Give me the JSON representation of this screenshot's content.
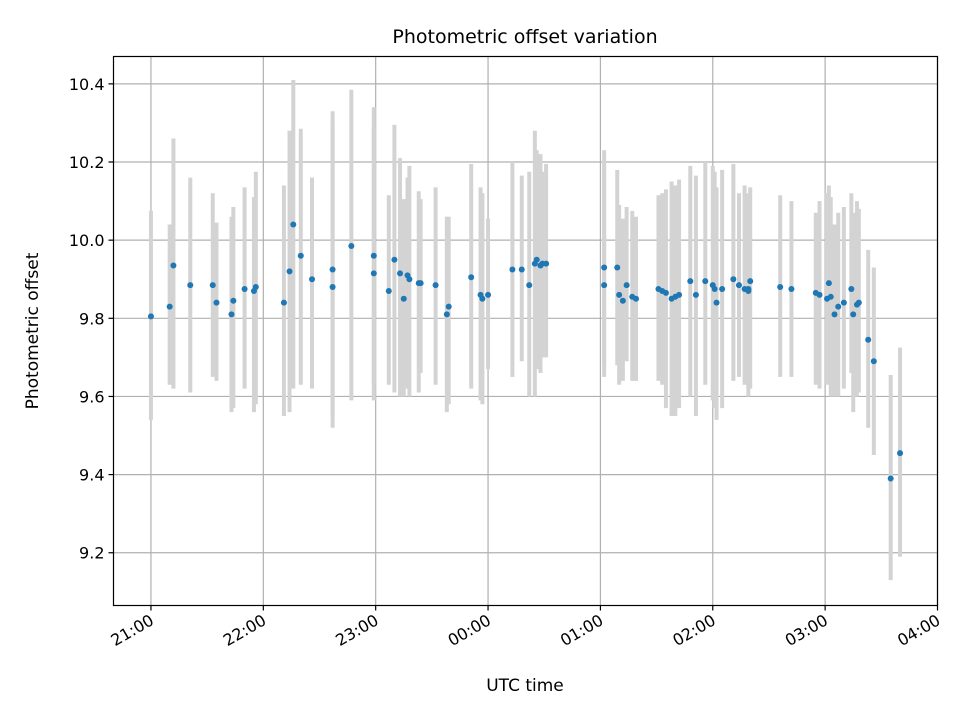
{
  "chart_data": {
    "type": "scatter",
    "title": "Photometric offset variation",
    "xlabel": "UTC time",
    "ylabel": "Photometric offset",
    "x_ticks": [
      "21:00",
      "22:00",
      "23:00",
      "00:00",
      "01:00",
      "02:00",
      "03:00",
      "04:00"
    ],
    "y_ticks": [
      "9.2",
      "9.4",
      "9.6",
      "9.8",
      "10.0",
      "10.2",
      "10.4"
    ],
    "xlim": [
      "20:40",
      "04:00"
    ],
    "ylim": [
      9.065,
      10.47
    ],
    "grid": true,
    "colors": {
      "point": "#1f77b4",
      "errorbar": "#d3d3d3",
      "grid": "#b0b0b0"
    },
    "series": [
      {
        "x": [
          "21:00",
          "21:10",
          "21:12",
          "21:21",
          "21:33",
          "21:35",
          "21:43",
          "21:44",
          "21:50",
          "21:55",
          "21:56",
          "22:11",
          "22:14",
          "22:16",
          "22:20",
          "22:26",
          "22:37",
          "22:37",
          "22:47",
          "22:59",
          "22:59",
          "23:07",
          "23:10",
          "23:13",
          "23:15",
          "23:17",
          "23:18",
          "23:23",
          "23:24",
          "23:32",
          "23:38",
          "23:39",
          "23:51",
          "23:56",
          "23:57",
          "24:00",
          "24:13",
          "24:18",
          "24:22",
          "24:25",
          "24:26",
          "24:28",
          "24:29",
          "24:31",
          "25:02",
          "25:02",
          "25:09",
          "25:10",
          "25:12",
          "25:14",
          "25:17",
          "25:19",
          "25:31",
          "25:33",
          "25:35",
          "25:38",
          "25:40",
          "25:42",
          "25:48",
          "25:51",
          "25:56",
          "26:00",
          "26:01",
          "26:02",
          "26:05",
          "26:11",
          "26:14",
          "26:17",
          "26:19",
          "26:19",
          "26:20",
          "26:36",
          "26:42",
          "26:55",
          "26:57",
          "27:01",
          "27:02",
          "27:03",
          "27:05",
          "27:07",
          "27:10",
          "27:14",
          "27:15",
          "27:17",
          "27:18",
          "27:23",
          "27:26",
          "27:35",
          "27:40"
        ],
        "y": [
          9.805,
          9.83,
          9.935,
          9.885,
          9.885,
          9.84,
          9.81,
          9.845,
          9.875,
          9.87,
          9.88,
          9.84,
          9.92,
          10.04,
          9.96,
          9.9,
          9.88,
          9.925,
          9.985,
          9.915,
          9.96,
          9.87,
          9.95,
          9.915,
          9.85,
          9.91,
          9.9,
          9.89,
          9.89,
          9.885,
          9.81,
          9.83,
          9.905,
          9.86,
          9.85,
          9.86,
          9.925,
          9.925,
          9.885,
          9.94,
          9.95,
          9.935,
          9.94,
          9.94,
          9.885,
          9.93,
          9.93,
          9.86,
          9.845,
          9.885,
          9.855,
          9.85,
          9.875,
          9.87,
          9.865,
          9.85,
          9.855,
          9.86,
          9.895,
          9.86,
          9.895,
          9.885,
          9.875,
          9.84,
          9.875,
          9.9,
          9.885,
          9.875,
          9.87,
          9.875,
          9.895,
          9.88,
          9.875,
          9.865,
          9.86,
          9.85,
          9.89,
          9.855,
          9.81,
          9.83,
          9.84,
          9.875,
          9.81,
          9.835,
          9.84,
          9.745,
          9.69,
          9.39,
          9.455
        ],
        "err_low": [
          9.54,
          9.63,
          9.62,
          9.61,
          9.65,
          9.64,
          9.56,
          9.57,
          9.62,
          9.56,
          9.58,
          9.55,
          9.56,
          9.62,
          9.63,
          9.62,
          9.52,
          9.55,
          9.59,
          9.59,
          9.63,
          9.63,
          9.61,
          9.6,
          9.6,
          9.62,
          9.6,
          9.61,
          9.66,
          9.63,
          9.56,
          9.58,
          9.62,
          9.59,
          9.58,
          9.67,
          9.65,
          9.69,
          9.6,
          9.6,
          9.67,
          9.66,
          9.7,
          9.7,
          9.65,
          9.69,
          9.68,
          9.63,
          9.64,
          9.69,
          9.64,
          9.64,
          9.64,
          9.63,
          9.57,
          9.55,
          9.55,
          9.57,
          9.6,
          9.55,
          9.63,
          9.59,
          9.57,
          9.54,
          9.57,
          9.64,
          9.65,
          9.63,
          9.62,
          9.6,
          9.62,
          9.65,
          9.65,
          9.63,
          9.62,
          9.63,
          9.65,
          9.6,
          9.6,
          9.6,
          9.62,
          9.66,
          9.56,
          9.6,
          9.61,
          9.52,
          9.45,
          9.13,
          9.19
        ],
        "err_high": [
          10.075,
          10.04,
          10.26,
          10.16,
          10.12,
          10.045,
          10.06,
          10.085,
          10.135,
          10.11,
          10.175,
          10.14,
          10.28,
          10.41,
          10.285,
          10.16,
          10.33,
          10.305,
          10.385,
          10.34,
          10.29,
          10.115,
          10.295,
          10.21,
          10.105,
          10.16,
          10.19,
          10.125,
          10.105,
          10.135,
          10.06,
          10.06,
          10.195,
          10.135,
          10.12,
          10.055,
          10.2,
          10.165,
          10.175,
          10.28,
          10.23,
          10.22,
          10.175,
          10.195,
          10.23,
          10.2,
          10.18,
          10.09,
          10.055,
          10.085,
          10.075,
          10.06,
          10.115,
          10.12,
          10.13,
          10.15,
          10.14,
          10.155,
          10.19,
          10.165,
          10.2,
          10.19,
          10.175,
          10.135,
          10.18,
          10.195,
          10.12,
          10.14,
          10.1,
          10.12,
          10.135,
          10.115,
          10.1,
          10.07,
          10.1,
          10.12,
          10.14,
          10.11,
          10.04,
          10.07,
          10.085,
          10.12,
          10.07,
          10.1,
          10.08,
          9.975,
          9.93,
          9.655,
          9.725
        ]
      }
    ]
  }
}
